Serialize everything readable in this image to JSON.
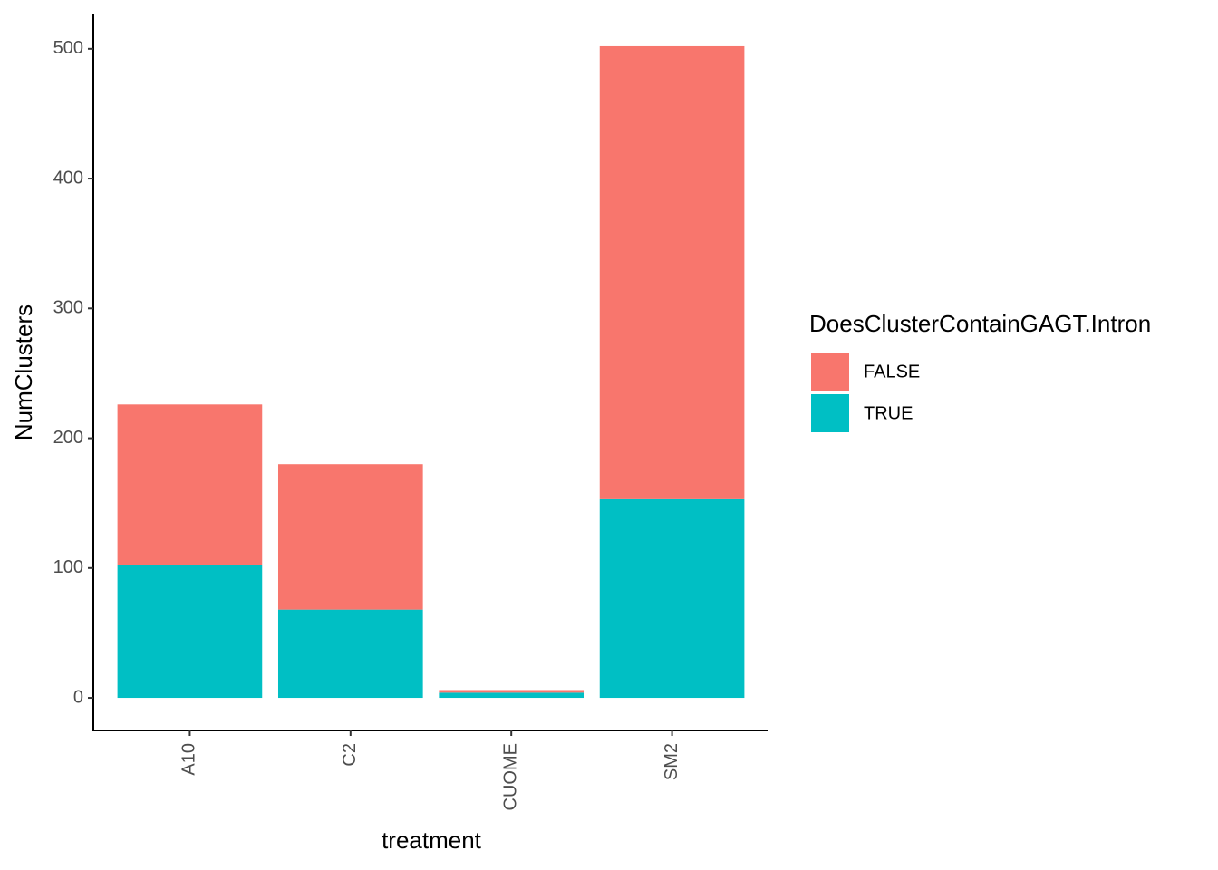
{
  "chart_data": {
    "type": "stacked-bar",
    "x_label": "treatment",
    "y_label": "NumClusters",
    "legend_title": "DoesClusterContainGAGT.Intron",
    "legend_position": "right",
    "categories": [
      "A10",
      "C2",
      "CUOME",
      "SM2"
    ],
    "series": [
      {
        "name": "FALSE",
        "color": "#F8766D",
        "values": [
          124,
          112,
          2,
          349
        ]
      },
      {
        "name": "TRUE",
        "color": "#00BFC4",
        "values": [
          102,
          68,
          4,
          153
        ]
      }
    ],
    "ylim": [
      -25.1,
      527.1
    ],
    "yticks": [
      0,
      100,
      200,
      300,
      400,
      500
    ],
    "grid": false
  }
}
